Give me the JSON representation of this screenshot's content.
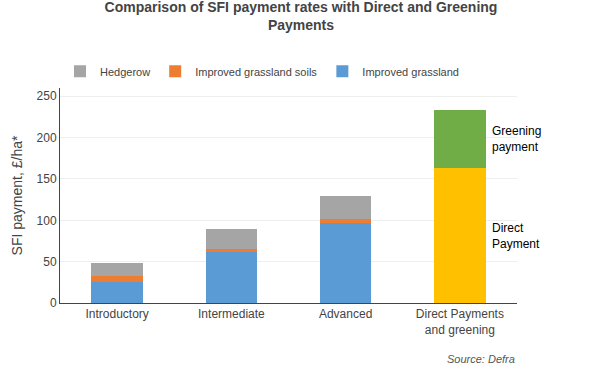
{
  "chart_data": {
    "type": "bar",
    "stacked": true,
    "title": "Comparison of SFI payment rates with Direct and Greening\nPayments",
    "ylabel": "SFI payment, £/ha*",
    "categories": [
      "Introductory",
      "Intermediate",
      "Advanced",
      "Direct Payments\nand greening"
    ],
    "series": [
      {
        "name": "Improved grassland",
        "color": "#5B9BD5",
        "values": [
          25,
          62,
          97,
          0
        ]
      },
      {
        "name": "Improved grassland soils",
        "color": "#ED7D31",
        "values": [
          8,
          3,
          5,
          0
        ]
      },
      {
        "name": "Hedgerow",
        "color": "#A5A5A5",
        "values": [
          15,
          25,
          27,
          0
        ]
      },
      {
        "color": "#FFC000",
        "values": [
          0,
          0,
          0,
          163
        ]
      },
      {
        "color": "#70AD47",
        "values": [
          0,
          0,
          0,
          70
        ]
      }
    ],
    "annotations": [
      "Greening\npayment",
      "Direct\nPayment",
      "Source: Defra"
    ],
    "ylim": [
      0,
      260
    ],
    "yticks": [
      0,
      50,
      100,
      150,
      200,
      250
    ],
    "grid": true,
    "legend": "top"
  }
}
